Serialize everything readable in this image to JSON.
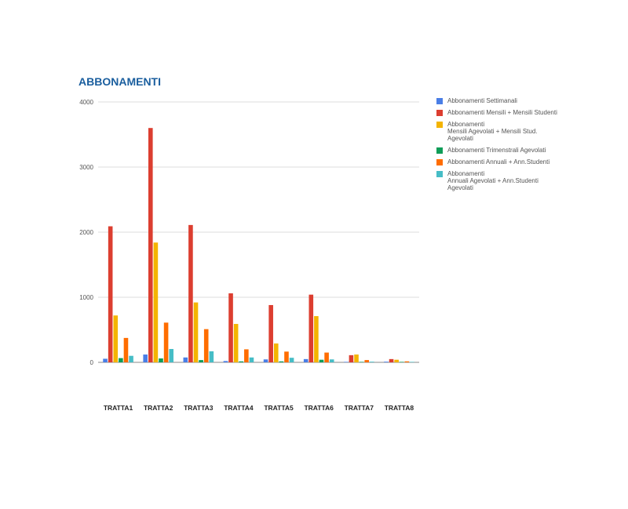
{
  "chart_data": {
    "type": "bar",
    "title": "ABBONAMENTI",
    "categories": [
      "TRATTA1",
      "TRATTA2",
      "TRATTA3",
      "TRATTA4",
      "TRATTA5",
      "TRATTA6",
      "TRATTA7",
      "TRATTA8"
    ],
    "ylim": [
      0,
      4000
    ],
    "yticks": [
      "0",
      "1000",
      "2000",
      "3000",
      "4000"
    ],
    "grid": true,
    "legend_position": "right",
    "series": [
      {
        "name": "Abbonamenti Settimanali",
        "color": "#4a7ee6",
        "values": [
          55,
          120,
          75,
          20,
          45,
          50,
          5,
          10
        ]
      },
      {
        "name": "Abbonamenti Mensili + Mensili Studenti",
        "color": "#dc3e30",
        "values": [
          2090,
          3600,
          2110,
          1060,
          880,
          1040,
          110,
          50
        ]
      },
      {
        "name": "Abbonamenti\nMensili Agevolati + Mensili Stud.\nAgevolati",
        "color": "#f4b400",
        "values": [
          720,
          1840,
          920,
          590,
          290,
          710,
          120,
          40
        ]
      },
      {
        "name": "Abbonamenti Trimenstrali Agevolati",
        "color": "#0f9d58",
        "values": [
          65,
          60,
          35,
          15,
          15,
          40,
          5,
          5
        ]
      },
      {
        "name": "Abbonamenti Annuali + Ann.Studenti",
        "color": "#ff6d00",
        "values": [
          375,
          610,
          510,
          200,
          165,
          150,
          35,
          15
        ]
      },
      {
        "name": "Abbonamenti\nAnnuali Agevolati + Ann.Studenti\nAgevolati",
        "color": "#46bdc6",
        "values": [
          100,
          205,
          170,
          75,
          70,
          45,
          10,
          5
        ]
      }
    ]
  }
}
